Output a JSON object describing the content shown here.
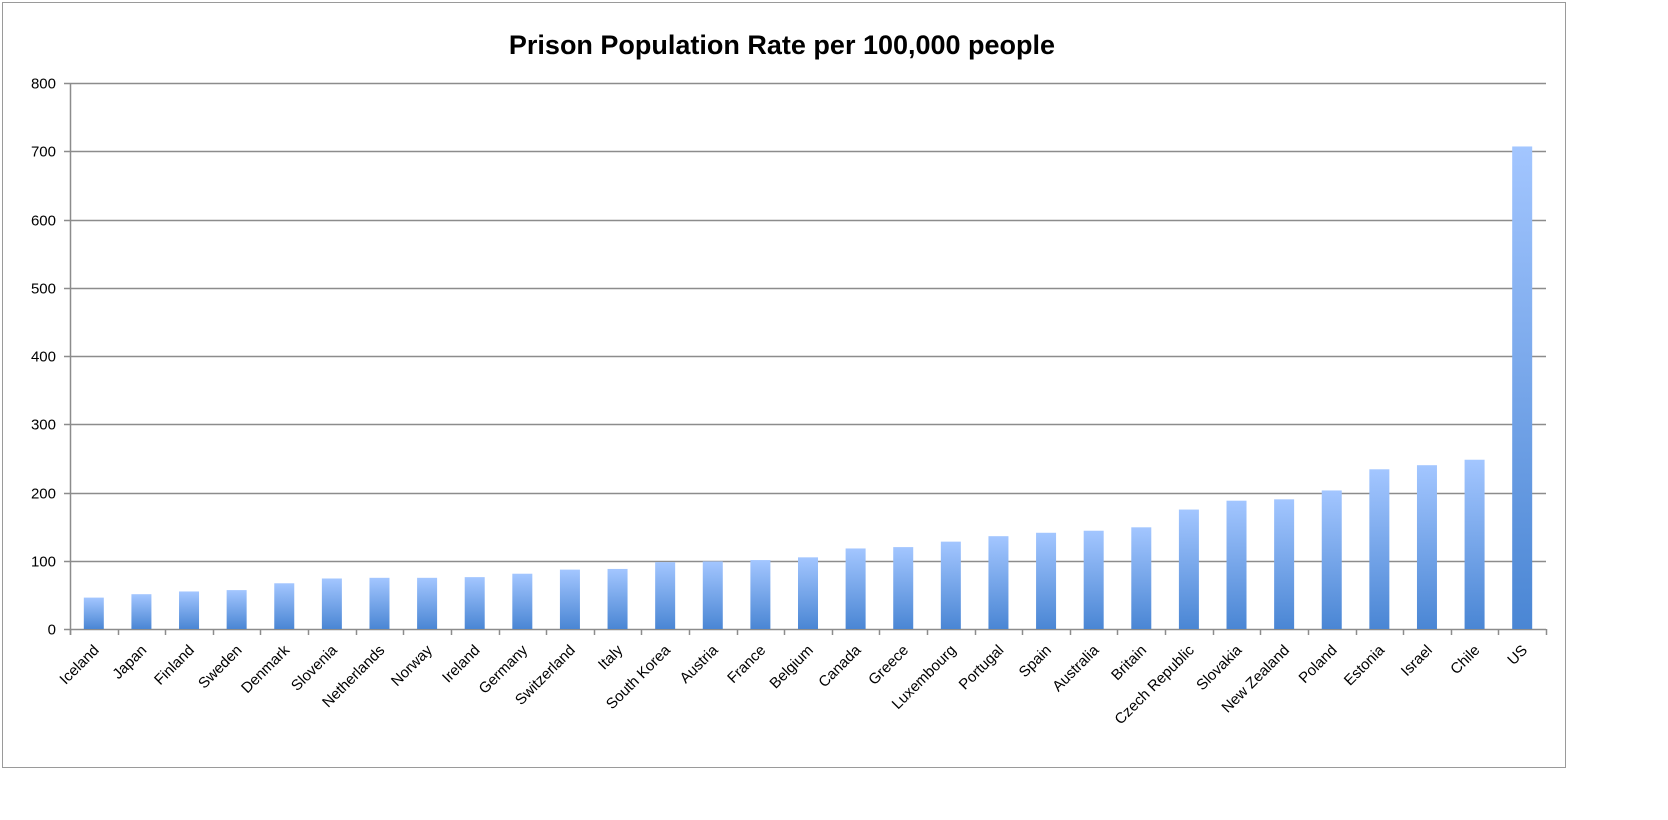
{
  "chart_data": {
    "type": "bar",
    "title": "Prison Population Rate per 100,000 people",
    "xlabel": "",
    "ylabel": "",
    "ylim": [
      0,
      800
    ],
    "yticks": [
      0,
      100,
      200,
      300,
      400,
      500,
      600,
      700,
      800
    ],
    "grid": true,
    "legend": "none",
    "categories": [
      "Iceland",
      "Japan",
      "Finland",
      "Sweden",
      "Denmark",
      "Slovenia",
      "Netherlands",
      "Norway",
      "Ireland",
      "Germany",
      "Switzerland",
      "Italy",
      "South Korea",
      "Austria",
      "France",
      "Belgium",
      "Canada",
      "Greece",
      "Luxembourg",
      "Portugal",
      "Spain",
      "Australia",
      "Britain",
      "Czech Republic",
      "Slovakia",
      "New Zealand",
      "Poland",
      "Estonia",
      "Israel",
      "Chile",
      "US"
    ],
    "values": [
      46,
      51,
      55,
      57,
      67,
      74,
      75,
      75,
      76,
      81,
      87,
      88,
      98,
      99,
      101,
      105,
      118,
      120,
      128,
      136,
      141,
      144,
      149,
      175,
      188,
      190,
      203,
      234,
      240,
      248,
      707
    ],
    "colors": {
      "bar_top": "#a3c6ff",
      "bar_bottom": "#4a86d4",
      "grid": "#8c8c8c"
    }
  }
}
